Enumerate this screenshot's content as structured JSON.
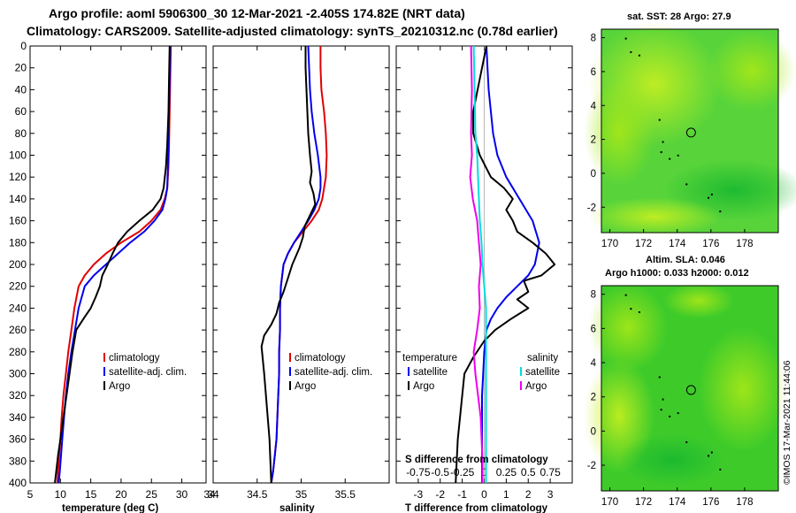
{
  "header": {
    "title1": "Argo profile: aoml 5906300_30 12-Mar-2021 -2.405S 174.82E (NRT data)",
    "title2": "Climatology: CARS2009. Satellite-adjusted climatology: synTS_20210312.nc (0.78d earlier)"
  },
  "side_note": "©IMOS 17-Mar-2021 11:44:06",
  "colors": {
    "climatology": "#e00000",
    "satellite": "#0000ee",
    "argo": "#000000",
    "s_satellite": "#00dddd",
    "s_argo": "#ee00ee"
  },
  "depth_ticks": [
    "0",
    "20",
    "40",
    "60",
    "80",
    "100",
    "120",
    "140",
    "160",
    "180",
    "200",
    "220",
    "240",
    "260",
    "280",
    "300",
    "320",
    "340",
    "360",
    "380",
    "400"
  ],
  "chart_data": [
    {
      "type": "line",
      "xlabel": "temperature (deg C)",
      "ylabel": "",
      "xlim": [
        5,
        34
      ],
      "ylim": [
        0,
        400
      ],
      "xticks": [
        "5",
        "10",
        "15",
        "20",
        "25",
        "30"
      ],
      "legend": [
        "climatology",
        "satellite-adj. clim.",
        "Argo"
      ],
      "series": [
        {
          "name": "climatology",
          "color": "#e00000",
          "x": [
            28.2,
            28.1,
            28.0,
            27.9,
            27.8,
            27.6,
            27.2,
            26.5,
            25.0,
            23.0,
            20.0,
            17.5,
            15.5,
            14.0,
            13.0,
            12.3,
            11.8,
            11.3,
            10.9,
            10.5,
            10.2,
            10.0,
            9.8,
            9.6,
            9.5
          ],
          "y": [
            0,
            30,
            60,
            90,
            110,
            130,
            140,
            150,
            160,
            170,
            180,
            190,
            200,
            210,
            220,
            240,
            260,
            280,
            300,
            320,
            340,
            360,
            375,
            390,
            400
          ]
        },
        {
          "name": "satellite-adj. clim.",
          "color": "#0000ee",
          "x": [
            28.1,
            28.0,
            27.9,
            27.8,
            27.7,
            27.6,
            27.3,
            26.8,
            25.5,
            23.8,
            21.5,
            19.5,
            17.5,
            15.5,
            14.0,
            13.0,
            12.4,
            11.8,
            11.3,
            10.9,
            10.6,
            10.3,
            10.1,
            9.9,
            9.7
          ],
          "y": [
            0,
            30,
            60,
            90,
            110,
            130,
            140,
            150,
            160,
            170,
            180,
            190,
            200,
            210,
            220,
            240,
            260,
            280,
            300,
            320,
            340,
            360,
            375,
            390,
            400
          ]
        },
        {
          "name": "Argo",
          "color": "#000000",
          "x": [
            28.0,
            27.9,
            27.8,
            27.6,
            27.4,
            27.0,
            26.5,
            25.2,
            23.0,
            21.0,
            19.5,
            18.6,
            17.8,
            16.9,
            16.5,
            15.8,
            15.0,
            14.0,
            12.6,
            12.0,
            11.5,
            11.0,
            10.5,
            10.0,
            9.6,
            9.3,
            9.1
          ],
          "y": [
            0,
            30,
            60,
            90,
            110,
            130,
            140,
            150,
            160,
            170,
            180,
            190,
            200,
            210,
            220,
            230,
            240,
            248,
            260,
            280,
            300,
            320,
            340,
            360,
            375,
            390,
            400
          ]
        }
      ]
    },
    {
      "type": "line",
      "xlabel": "salinity",
      "ylabel": "",
      "xlim": [
        34,
        36
      ],
      "ylim": [
        0,
        400
      ],
      "xticks": [
        "34",
        "34.5",
        "35",
        "35.5"
      ],
      "legend": [
        "climatology",
        "satellite-adj. clim.",
        "Argo"
      ],
      "series": [
        {
          "name": "climatology",
          "color": "#e00000",
          "x": [
            35.22,
            35.22,
            35.23,
            35.26,
            35.28,
            35.29,
            35.28,
            35.26,
            35.24,
            35.2,
            35.12,
            35.02,
            34.92,
            34.85,
            34.8,
            34.77,
            34.76,
            34.76,
            34.75,
            34.75,
            34.74,
            34.73,
            34.72,
            34.7,
            34.68,
            34.66
          ],
          "y": [
            0,
            20,
            40,
            60,
            80,
            100,
            120,
            130,
            140,
            150,
            160,
            170,
            180,
            190,
            200,
            220,
            240,
            260,
            280,
            300,
            320,
            340,
            360,
            375,
            390,
            400
          ]
        },
        {
          "name": "satellite-adj. clim.",
          "color": "#0000ee",
          "x": [
            35.08,
            35.09,
            35.1,
            35.12,
            35.15,
            35.19,
            35.22,
            35.22,
            35.2,
            35.15,
            35.08,
            35.0,
            34.92,
            34.85,
            34.8,
            34.77,
            34.76,
            34.76,
            34.75,
            34.75,
            34.74,
            34.73,
            34.72,
            34.7,
            34.68,
            34.66
          ],
          "y": [
            0,
            20,
            40,
            60,
            80,
            100,
            120,
            130,
            140,
            150,
            160,
            170,
            180,
            190,
            200,
            220,
            240,
            260,
            280,
            300,
            320,
            340,
            360,
            375,
            390,
            400
          ]
        },
        {
          "name": "Argo",
          "color": "#000000",
          "x": [
            35.05,
            35.05,
            35.06,
            35.07,
            35.08,
            35.1,
            35.12,
            35.1,
            35.14,
            35.16,
            35.1,
            35.04,
            35.02,
            34.98,
            34.9,
            34.84,
            34.8,
            34.75,
            34.72,
            34.66,
            34.58,
            34.55,
            34.58,
            34.6,
            34.62,
            34.64,
            34.65,
            34.66
          ],
          "y": [
            0,
            20,
            40,
            60,
            80,
            100,
            115,
            125,
            135,
            145,
            155,
            165,
            175,
            185,
            200,
            215,
            225,
            235,
            245,
            255,
            265,
            275,
            300,
            320,
            340,
            360,
            380,
            400
          ]
        }
      ]
    },
    {
      "type": "line",
      "xlabel": "T difference from climatology",
      "title": "S difference from climatology",
      "ylabel": "",
      "xlim": [
        -4,
        4
      ],
      "ylim": [
        0,
        400
      ],
      "xticks": [
        "-3",
        "-2",
        "-1",
        "0",
        "1",
        "2",
        "3"
      ],
      "top_ticks": [
        "-0.75",
        "-0.5",
        "-0.25",
        "0",
        "0.25",
        "0.5",
        "0.75"
      ],
      "legend_left_title": "temperature",
      "legend_right_title": "salinity",
      "legend": [
        "satellite",
        "Argo",
        "satellite",
        "Argo"
      ],
      "series": [
        {
          "name": "temperature satellite",
          "color": "#0000ee",
          "x": [
            0.1,
            0.15,
            0.2,
            0.3,
            0.4,
            0.6,
            1.0,
            1.6,
            2.2,
            2.5,
            2.3,
            2.0,
            1.5,
            1.0,
            0.6,
            0.3,
            0.1,
            0.0,
            -0.05,
            -0.1,
            -0.1,
            -0.1,
            -0.1,
            -0.1
          ],
          "y": [
            0,
            20,
            40,
            60,
            80,
            100,
            120,
            140,
            160,
            180,
            200,
            210,
            220,
            230,
            240,
            250,
            260,
            280,
            300,
            320,
            340,
            360,
            380,
            400
          ]
        },
        {
          "name": "temperature Argo",
          "color": "#000000",
          "x": [
            0.1,
            -0.1,
            -0.3,
            -0.5,
            -0.5,
            -0.2,
            0.3,
            0.9,
            1.3,
            1.0,
            1.3,
            1.5,
            2.2,
            2.8,
            3.2,
            2.6,
            1.8,
            2.0,
            1.5,
            2.0,
            1.2,
            0.5,
            0.0,
            -0.5,
            -0.9,
            -1.0,
            -1.1,
            -1.2,
            -1.3
          ],
          "y": [
            0,
            20,
            40,
            60,
            80,
            100,
            120,
            130,
            140,
            150,
            160,
            170,
            180,
            190,
            200,
            210,
            215,
            225,
            232,
            240,
            250,
            260,
            270,
            285,
            300,
            320,
            340,
            360,
            400
          ]
        },
        {
          "name": "salinity satellite",
          "color": "#00dddd",
          "x": [
            -0.12,
            -0.11,
            -0.1,
            -0.08,
            -0.06,
            -0.05,
            -0.03,
            -0.02,
            0.0,
            0.02,
            0.02,
            0.02,
            0.02,
            0.02,
            0.02,
            0.02,
            0.02
          ],
          "y": [
            0,
            40,
            80,
            100,
            140,
            160,
            180,
            200,
            220,
            240,
            260,
            280,
            300,
            320,
            340,
            360,
            400
          ]
        },
        {
          "name": "salinity Argo",
          "color": "#ee00ee",
          "x": [
            -0.15,
            -0.14,
            -0.15,
            -0.14,
            -0.16,
            -0.13,
            -0.08,
            -0.06,
            -0.04,
            -0.06,
            -0.05,
            -0.08,
            -0.12,
            -0.1,
            -0.07,
            -0.04,
            -0.03,
            -0.02,
            -0.02
          ],
          "y": [
            0,
            40,
            80,
            100,
            120,
            140,
            160,
            180,
            200,
            220,
            240,
            260,
            280,
            300,
            320,
            340,
            360,
            380,
            400
          ]
        }
      ]
    },
    {
      "type": "heatmap",
      "title": "sat. SST: 28 Argo: 27.9",
      "xticks": [
        "170",
        "172",
        "174",
        "176",
        "178"
      ],
      "yticks": [
        "8",
        "6",
        "4",
        "2",
        "0",
        "-2"
      ],
      "xlim": [
        169.5,
        180
      ],
      "ylim": [
        -3.5,
        8.5
      ]
    },
    {
      "type": "heatmap",
      "title": "Altim. SLA: 0.046",
      "subtitle": "Argo h1000: 0.033 h2000: 0.012",
      "xticks": [
        "170",
        "172",
        "174",
        "176",
        "178"
      ],
      "yticks": [
        "8",
        "6",
        "4",
        "2",
        "0",
        "-2"
      ],
      "xlim": [
        169.5,
        180
      ],
      "ylim": [
        -3.5,
        8.5
      ]
    }
  ]
}
